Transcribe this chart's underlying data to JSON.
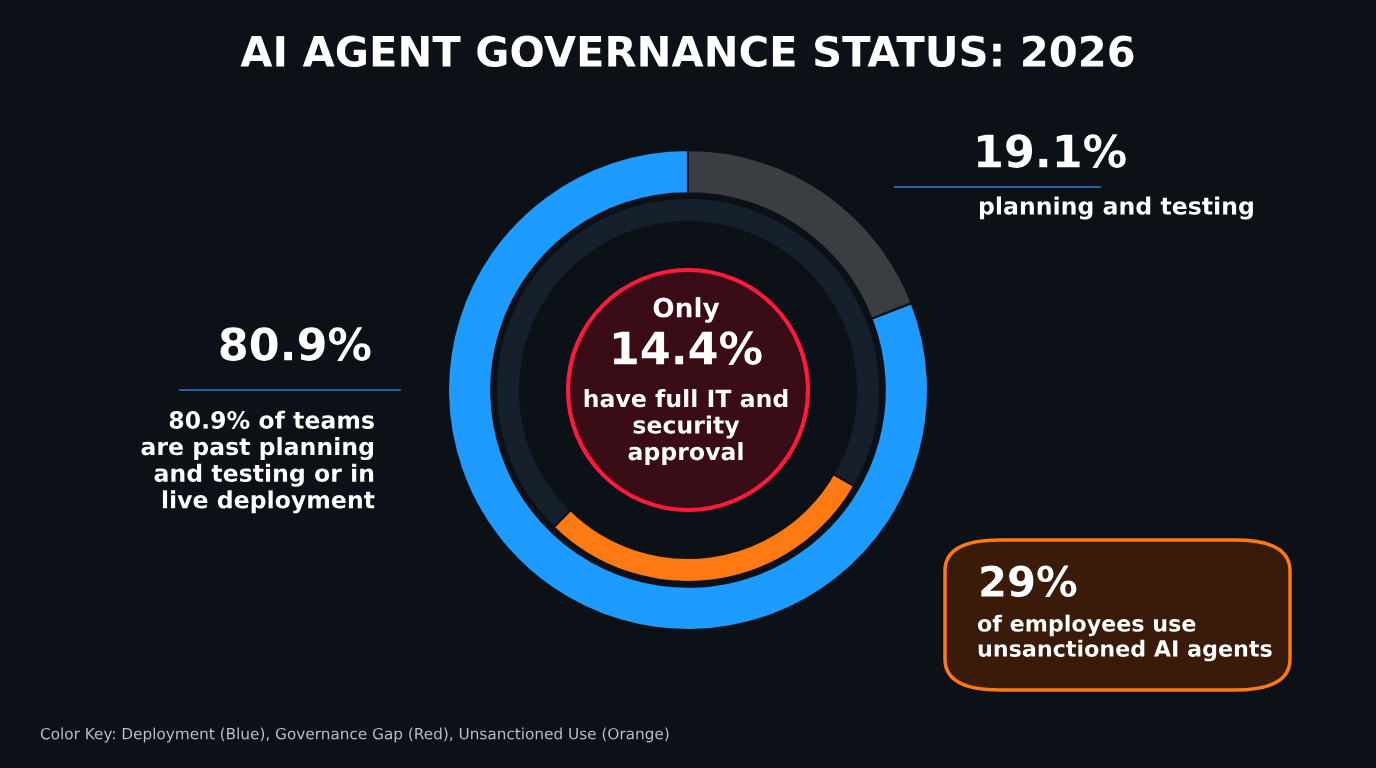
{
  "chart_data": {
    "type": "donut",
    "title": "AI AGENT GOVERNANCE STATUS: 2026",
    "series": [
      {
        "values": [
          80.9,
          19.1
        ],
        "colors": [
          "#1e9bff",
          "#3a3d42"
        ]
      },
      {
        "values": [
          29,
          71
        ],
        "colors": [
          "#ff7a12",
          "#16202c"
        ]
      }
    ],
    "annotations": [
      "80.9%",
      "80.9% of teams\nare past planning\nand testing or in\nlive deployment",
      "19.1%",
      "planning and testing",
      "Only",
      "14.4%",
      "have full IT and\nsecurity\napproval",
      "29%",
      "of employees use\nunsanctioned AI agents",
      "Color Key: Deployment (Blue), Governance Gap (Red), Unsanctioned Use (Orange)"
    ],
    "legend": false
  }
}
